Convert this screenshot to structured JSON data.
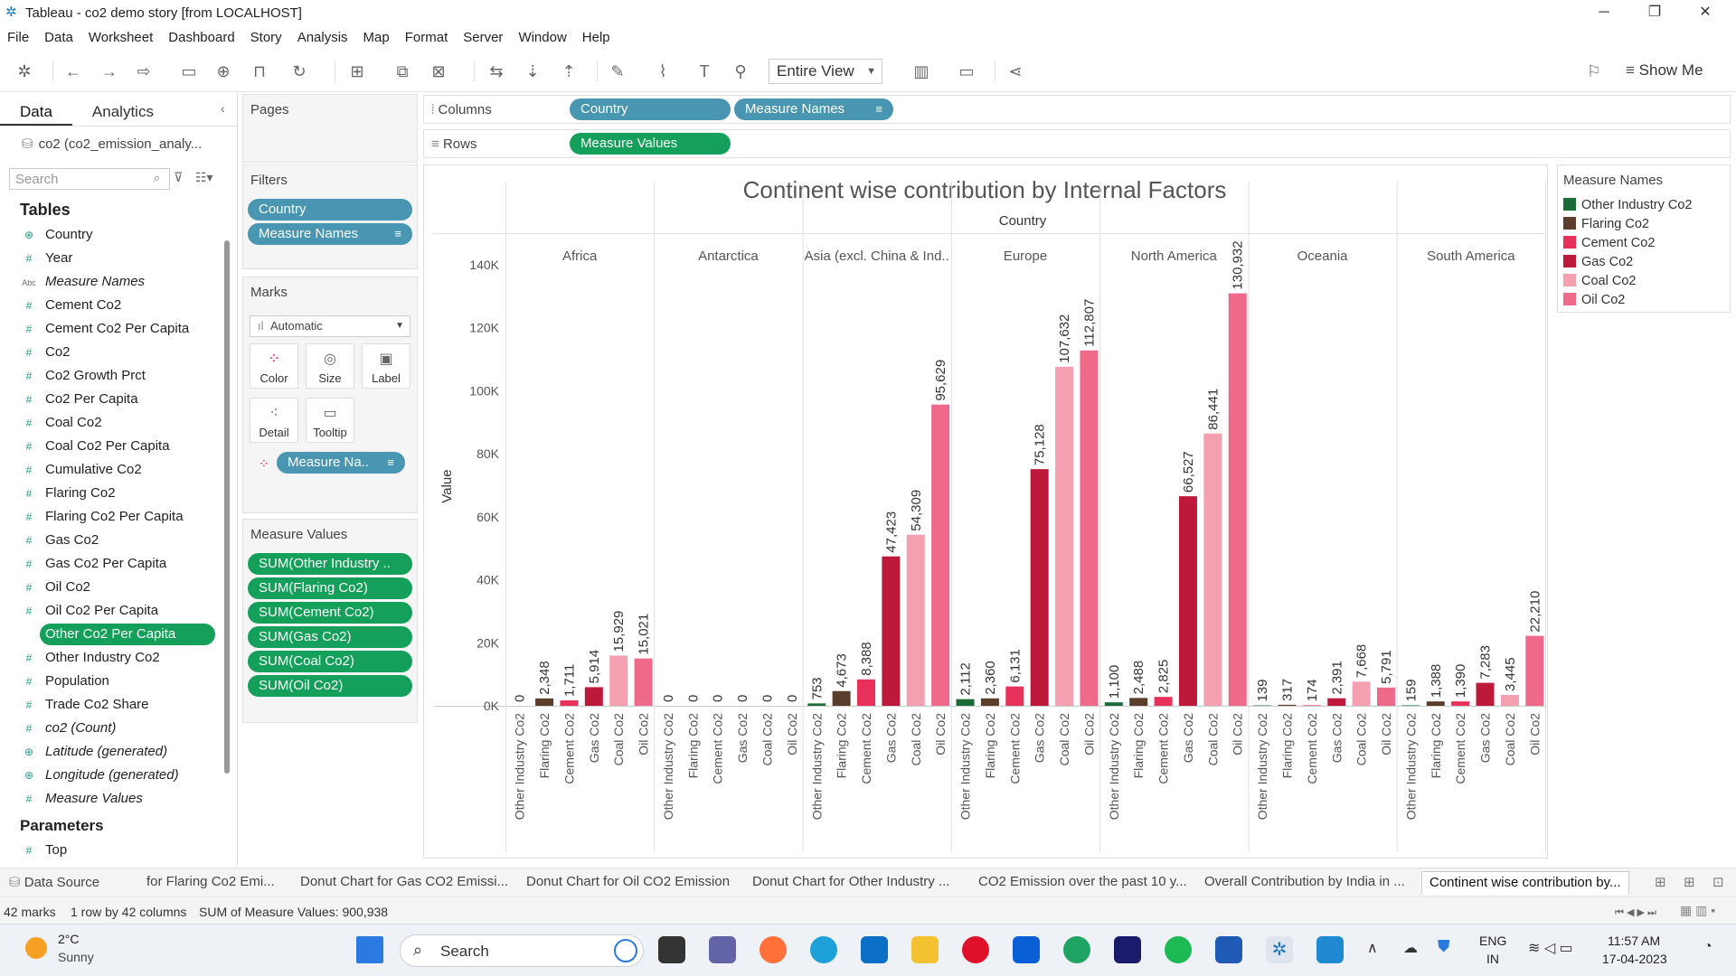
{
  "window": {
    "title": "Tableau - co2 demo story [from LOCALHOST]",
    "minimize": "─",
    "restore": "❐",
    "close": "✕"
  },
  "menu": [
    "File",
    "Data",
    "Worksheet",
    "Dashboard",
    "Story",
    "Analysis",
    "Map",
    "Format",
    "Server",
    "Window",
    "Help"
  ],
  "toolbar": {
    "view_select": "Entire View",
    "show_me": "Show Me"
  },
  "data_pane": {
    "tabs": [
      "Data",
      "Analytics"
    ],
    "datasource": "co2 (co2_emission_analy...",
    "search_placeholder": "Search",
    "tables_heading": "Tables",
    "parameters_heading": "Parameters",
    "fields": [
      {
        "label": "Country",
        "icon": "globe-icon",
        "italic": false
      },
      {
        "label": "Year",
        "icon": "hash-icon",
        "italic": false
      },
      {
        "label": "Measure Names",
        "icon": "abc-icon",
        "italic": true
      },
      {
        "label": "Cement Co2",
        "icon": "hash-icon",
        "italic": false
      },
      {
        "label": "Cement Co2 Per Capita",
        "icon": "hash-icon",
        "italic": false
      },
      {
        "label": "Co2",
        "icon": "hash-icon",
        "italic": false
      },
      {
        "label": "Co2 Growth Prct",
        "icon": "hash-icon",
        "italic": false
      },
      {
        "label": "Co2 Per Capita",
        "icon": "hash-icon",
        "italic": false
      },
      {
        "label": "Coal Co2",
        "icon": "hash-icon",
        "italic": false
      },
      {
        "label": "Coal Co2 Per Capita",
        "icon": "hash-icon",
        "italic": false
      },
      {
        "label": "Cumulative Co2",
        "icon": "hash-icon",
        "italic": false
      },
      {
        "label": "Flaring Co2",
        "icon": "hash-icon",
        "italic": false
      },
      {
        "label": "Flaring Co2 Per Capita",
        "icon": "hash-icon",
        "italic": false
      },
      {
        "label": "Gas Co2",
        "icon": "hash-icon",
        "italic": false
      },
      {
        "label": "Gas Co2 Per Capita",
        "icon": "hash-icon",
        "italic": false
      },
      {
        "label": "Oil Co2",
        "icon": "hash-icon",
        "italic": false
      },
      {
        "label": "Oil Co2 Per Capita",
        "icon": "hash-icon",
        "italic": false
      },
      {
        "label": "Other Co2 Per Capita",
        "icon": "hash-icon",
        "italic": false,
        "selected": true
      },
      {
        "label": "Other Industry Co2",
        "icon": "hash-icon",
        "italic": false
      },
      {
        "label": "Population",
        "icon": "hash-icon",
        "italic": false
      },
      {
        "label": "Trade Co2 Share",
        "icon": "hash-icon",
        "italic": false
      },
      {
        "label": "co2 (Count)",
        "icon": "hash-icon",
        "italic": true
      },
      {
        "label": "Latitude (generated)",
        "icon": "globe-icon",
        "italic": true
      },
      {
        "label": "Longitude (generated)",
        "icon": "globe-icon",
        "italic": true
      },
      {
        "label": "Measure Values",
        "icon": "hash-icon",
        "italic": true
      }
    ],
    "parameters": [
      {
        "label": "Top",
        "icon": "hash-icon"
      }
    ]
  },
  "pages": {
    "title": "Pages"
  },
  "filters": {
    "title": "Filters",
    "pills": [
      "Country",
      "Measure Names"
    ]
  },
  "marks": {
    "title": "Marks",
    "type": "Automatic",
    "buttons": [
      "Color",
      "Size",
      "Label",
      "Detail",
      "Tooltip"
    ],
    "pill": "Measure Na.."
  },
  "measure_values": {
    "title": "Measure Values",
    "pills": [
      "SUM(Other Industry ..",
      "SUM(Flaring Co2)",
      "SUM(Cement Co2)",
      "SUM(Gas Co2)",
      "SUM(Coal Co2)",
      "SUM(Oil Co2)"
    ]
  },
  "shelves": {
    "columns_label": "Columns",
    "rows_label": "Rows",
    "columns": [
      "Country",
      "Measure Names"
    ],
    "rows": [
      "Measure Values"
    ]
  },
  "legend": {
    "title": "Measure Names",
    "items": [
      {
        "name": "Other Industry Co2",
        "color": "#1a6b35"
      },
      {
        "name": "Flaring Co2",
        "color": "#5a3e2b"
      },
      {
        "name": "Cement Co2",
        "color": "#e8315a"
      },
      {
        "name": "Gas Co2",
        "color": "#bd1a3b"
      },
      {
        "name": "Coal Co2",
        "color": "#f4a0b0"
      },
      {
        "name": "Oil Co2",
        "color": "#ef6a8a"
      }
    ]
  },
  "chart_data": {
    "type": "bar",
    "title": "Continent wise contribution by Internal Factors",
    "column_header": "Country",
    "ylabel": "Value",
    "ylim": [
      0,
      140000
    ],
    "yticks": [
      "0K",
      "20K",
      "40K",
      "60K",
      "80K",
      "100K",
      "120K",
      "140K"
    ],
    "measures": [
      "Other Industry Co2",
      "Flaring Co2",
      "Cement Co2",
      "Gas Co2",
      "Coal Co2",
      "Oil Co2"
    ],
    "groups": [
      {
        "name": "Africa",
        "values": [
          0,
          2348,
          1711,
          5914,
          15929,
          15021
        ],
        "labels": [
          "0",
          "2,348",
          "1,711",
          "5,914",
          "15,929",
          "15,021"
        ]
      },
      {
        "name": "Antarctica",
        "values": [
          0,
          0,
          0,
          0,
          0,
          0
        ],
        "labels": [
          "0",
          "0",
          "0",
          "0",
          "0",
          "0"
        ]
      },
      {
        "name": "Asia (excl. China & Ind..",
        "values": [
          753,
          4673,
          8388,
          47423,
          54309,
          95629
        ],
        "labels": [
          "753",
          "4,673",
          "8,388",
          "47,423",
          "54,309",
          "95,629"
        ]
      },
      {
        "name": "Europe",
        "values": [
          2112,
          2360,
          6131,
          75128,
          107632,
          112807
        ],
        "labels": [
          "2,112",
          "2,360",
          "6,131",
          "75,128",
          "107,632",
          "112,807"
        ]
      },
      {
        "name": "North America",
        "values": [
          1100,
          2488,
          2825,
          66527,
          86441,
          130932
        ],
        "labels": [
          "1,100",
          "2,488",
          "2,825",
          "66,527",
          "86,441",
          "130,932"
        ]
      },
      {
        "name": "Oceania",
        "values": [
          139,
          317,
          174,
          2391,
          7668,
          5791
        ],
        "labels": [
          "139",
          "317",
          "174",
          "2,391",
          "7,668",
          "5,791"
        ]
      },
      {
        "name": "South America",
        "values": [
          159,
          1388,
          1390,
          7283,
          3445,
          22210
        ],
        "labels": [
          "159",
          "1,388",
          "1,390",
          "7,283",
          "3,445",
          "22,210"
        ]
      }
    ]
  },
  "sheet_tabs": {
    "data_source": "Data Source",
    "tabs": [
      " for Flaring Co2 Emi...",
      "Donut Chart for Gas CO2 Emissi...",
      "Donut Chart for Oil CO2 Emission",
      "Donut  Chart for Other Industry ...",
      "CO2 Emission over the past 10 y...",
      "Overall Contribution by India in ...",
      "Continent wise contribution by..."
    ]
  },
  "status": {
    "marks": "42 marks",
    "rows_cols": "1 row by 42 columns",
    "sum": "SUM of Measure Values: 900,938"
  },
  "taskbar": {
    "weather_temp": "2°C",
    "weather_desc": "Sunny",
    "search": "Search",
    "lang1": "ENG",
    "lang2": "IN",
    "time": "11:57 AM",
    "date": "17-04-2023"
  }
}
